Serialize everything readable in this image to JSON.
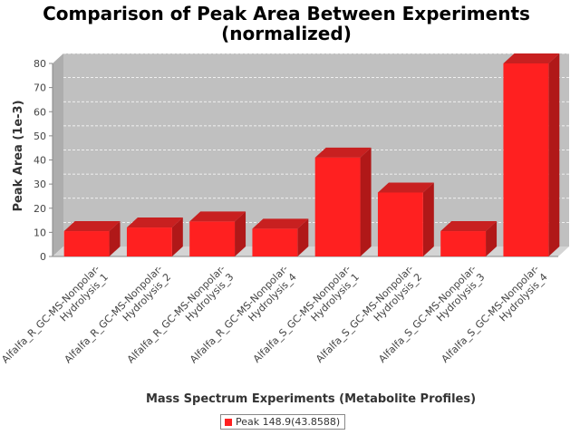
{
  "chart_data": {
    "type": "bar",
    "title": [
      "Comparison of Peak Area Between Experiments",
      "(normalized)"
    ],
    "xlabel": "Mass Spectrum Experiments (Metabolite Profiles)",
    "ylabel": "Peak Area (1e-3)",
    "ylim": [
      0,
      80
    ],
    "yticks": [
      0,
      10,
      20,
      30,
      40,
      50,
      60,
      70,
      80
    ],
    "grid": true,
    "legend_position": "bottom",
    "categories": [
      [
        "Alfalfa_R_GC-MS-Nonpolar-",
        "Hydrolysis_1"
      ],
      [
        "Alfalfa_R_GC-MS-Nonpolar-",
        "Hydrolysis_2"
      ],
      [
        "Alfalfa_R_GC-MS-Nonpolar-",
        "Hydrolysis_3"
      ],
      [
        "Alfalfa_R_GC-MS-Nonpolar-",
        "Hydrolysis_4"
      ],
      [
        "Alfalfa_S_GC-MS-Nonpolar-",
        "Hydrolysis_1"
      ],
      [
        "Alfalfa_S_GC-MS-Nonpolar-",
        "Hydrolysis_2"
      ],
      [
        "Alfalfa_S_GC-MS-Nonpolar-",
        "Hydrolysis_3"
      ],
      [
        "Alfalfa_S_GC-MS-Nonpolar-",
        "Hydrolysis_4"
      ]
    ],
    "series": [
      {
        "name": "Peak 148.9(43.8588)",
        "color": "#ff2020",
        "values": [
          10.5,
          12,
          14.5,
          11.5,
          41,
          26.5,
          10.5,
          80
        ]
      }
    ]
  }
}
